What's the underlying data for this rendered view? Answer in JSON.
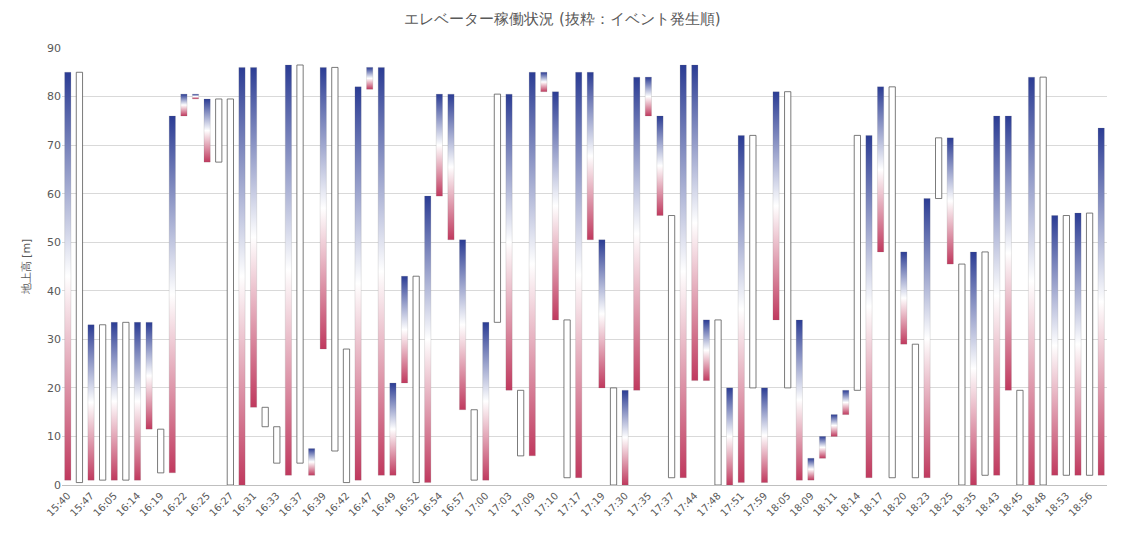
{
  "chart_data": {
    "type": "bar",
    "title": "エレベーター稼働状況 (抜粋：イベント発生順)",
    "y_label": "地上高 [m]",
    "categories": [
      "15:40",
      null,
      "15:47",
      null,
      "16:05",
      null,
      "16:14",
      null,
      "16:19",
      null,
      "16:22",
      null,
      "16:25",
      null,
      "16:27",
      null,
      "16:31",
      null,
      "16:33",
      null,
      "16:37",
      null,
      "16:39",
      null,
      "16:42",
      null,
      "16:47",
      null,
      "16:49",
      null,
      "16:52",
      null,
      "16:54",
      null,
      "16:57",
      null,
      "17:00",
      null,
      "17:03",
      null,
      "17:09",
      null,
      "17:10",
      null,
      "17:17",
      null,
      "17:19",
      null,
      "17:30",
      null,
      "17:35",
      null,
      "17:37",
      null,
      "17:44",
      null,
      "17:48",
      null,
      "17:51",
      null,
      "17:59",
      null,
      "18:05",
      null,
      "18:09",
      null,
      "18:11",
      null,
      "18:14",
      null,
      "18:17",
      null,
      "18:20",
      null,
      "18:23",
      null,
      "18:25",
      null,
      "18:35",
      null,
      "18:43",
      null,
      "18:45",
      null,
      "18:48",
      null,
      "18:53",
      null,
      "18:56",
      null
    ],
    "series": [
      {
        "color": [
          "#c0395e",
          "#ffffff",
          "#2b3c94"
        ],
        "low": [
          1,
          null,
          1,
          null,
          1,
          null,
          1,
          11.5,
          null,
          2.5,
          76,
          79.5,
          66.5,
          null,
          null,
          0,
          16,
          null,
          null,
          2,
          null,
          2,
          28,
          null,
          null,
          1,
          81.5,
          2,
          2,
          21,
          null,
          0.5,
          59.5,
          50.5,
          15.5,
          null,
          1,
          null,
          19.5,
          null,
          6,
          81,
          34,
          null,
          1.5,
          50.5,
          20,
          null,
          0,
          19.5,
          76,
          55.5,
          null,
          1.5,
          21.5,
          21.5,
          null,
          0,
          0.5,
          null,
          0.5,
          34,
          null,
          1,
          1,
          5.5,
          10,
          14.5,
          null,
          1.5,
          48,
          null,
          29,
          null,
          1.5,
          null,
          45.5,
          null,
          0,
          null,
          2,
          19.5,
          null,
          0,
          null,
          2,
          null,
          2,
          null,
          2
        ],
        "high": [
          85,
          null,
          33,
          null,
          33.5,
          null,
          33.5,
          33.5,
          null,
          76,
          80.5,
          80.5,
          79.5,
          null,
          null,
          86,
          86,
          null,
          null,
          86.5,
          null,
          7.5,
          86,
          null,
          null,
          82,
          86,
          86,
          21,
          43,
          null,
          59.5,
          80.5,
          80.5,
          50.5,
          null,
          33.5,
          null,
          80.5,
          null,
          85,
          85,
          81,
          null,
          85,
          85,
          50.5,
          null,
          19.5,
          84,
          84,
          76,
          null,
          86.5,
          86.5,
          34,
          null,
          20,
          72,
          null,
          20,
          81,
          null,
          34,
          5.5,
          10,
          14.5,
          19.5,
          null,
          72,
          82,
          null,
          48,
          null,
          59,
          null,
          71.5,
          null,
          48,
          null,
          76,
          76,
          null,
          84,
          null,
          55.5,
          null,
          56,
          null,
          73.5
        ]
      },
      {
        "color": "#ffffff",
        "low": [
          null,
          0.5,
          null,
          1,
          null,
          1,
          null,
          null,
          2.5,
          null,
          null,
          null,
          null,
          66.5,
          0,
          null,
          null,
          12,
          4.5,
          null,
          4.5,
          null,
          null,
          7,
          0.5,
          null,
          null,
          null,
          null,
          null,
          0.5,
          null,
          null,
          null,
          null,
          1,
          null,
          33.5,
          null,
          6,
          null,
          null,
          null,
          1.5,
          null,
          null,
          null,
          0,
          null,
          null,
          null,
          null,
          1.5,
          null,
          null,
          null,
          0,
          null,
          null,
          20,
          null,
          null,
          20,
          null,
          null,
          null,
          null,
          null,
          19.5,
          null,
          null,
          1.5,
          null,
          1.5,
          null,
          59,
          null,
          0,
          null,
          2,
          null,
          null,
          0,
          null,
          0,
          null,
          2,
          null,
          2,
          null
        ],
        "high": [
          null,
          85,
          null,
          33,
          null,
          33.5,
          null,
          null,
          11.5,
          null,
          null,
          null,
          null,
          79.5,
          79.5,
          null,
          null,
          16,
          12,
          null,
          86.5,
          null,
          null,
          86,
          28,
          null,
          null,
          null,
          null,
          null,
          43,
          null,
          null,
          null,
          null,
          15.5,
          null,
          80.5,
          null,
          19.5,
          null,
          null,
          null,
          34,
          null,
          null,
          null,
          20,
          null,
          null,
          null,
          null,
          55.5,
          null,
          null,
          null,
          34,
          null,
          null,
          72,
          null,
          null,
          81,
          null,
          null,
          null,
          null,
          null,
          72,
          null,
          null,
          82,
          null,
          29,
          null,
          71.5,
          null,
          45.5,
          null,
          48,
          null,
          null,
          19.5,
          null,
          84,
          null,
          55.5,
          null,
          56,
          null
        ]
      }
    ],
    "ylim": [
      0,
      90
    ],
    "yticks": [
      0,
      10,
      20,
      30,
      40,
      50,
      60,
      70,
      80,
      90
    ],
    "grid": true
  }
}
